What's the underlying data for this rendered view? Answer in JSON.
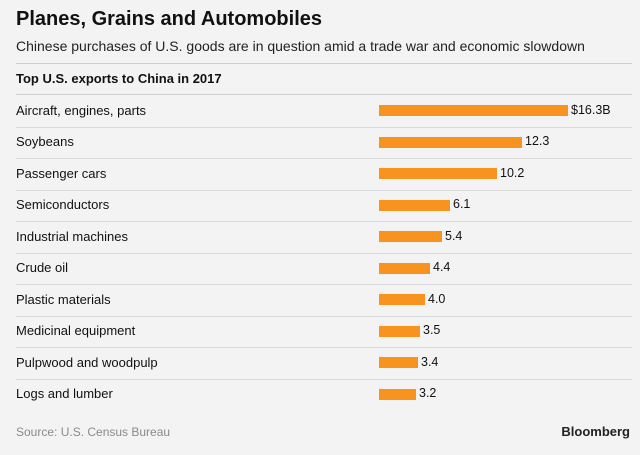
{
  "header": {
    "title": "Planes, Grains and Automobiles",
    "subtitle": "Chinese purchases of U.S. goods are in question amid a trade war and economic slowdown"
  },
  "chart_data": {
    "type": "bar",
    "orientation": "horizontal",
    "title": "Top U.S. exports to China in 2017",
    "unit": "billion USD",
    "categories": [
      "Aircraft, engines, parts",
      "Soybeans",
      "Passenger cars",
      "Semiconductors",
      "Industrial machines",
      "Crude oil",
      "Plastic materials",
      "Medicinal equipment",
      "Pulpwood and woodpulp",
      "Logs and lumber"
    ],
    "values": [
      16.3,
      12.3,
      10.2,
      6.1,
      5.4,
      4.4,
      4.0,
      3.5,
      3.4,
      3.2
    ],
    "value_labels": [
      "$16.3B",
      "12.3",
      "10.2",
      "6.1",
      "5.4",
      "4.4",
      "4.0",
      "3.5",
      "3.4",
      "3.2"
    ],
    "xlim": [
      0,
      16.3
    ],
    "bar_color": "#f7931e",
    "xlabel": "",
    "ylabel": ""
  },
  "footer": {
    "source": "Source: U.S. Census Bureau",
    "brand": "Bloomberg"
  }
}
